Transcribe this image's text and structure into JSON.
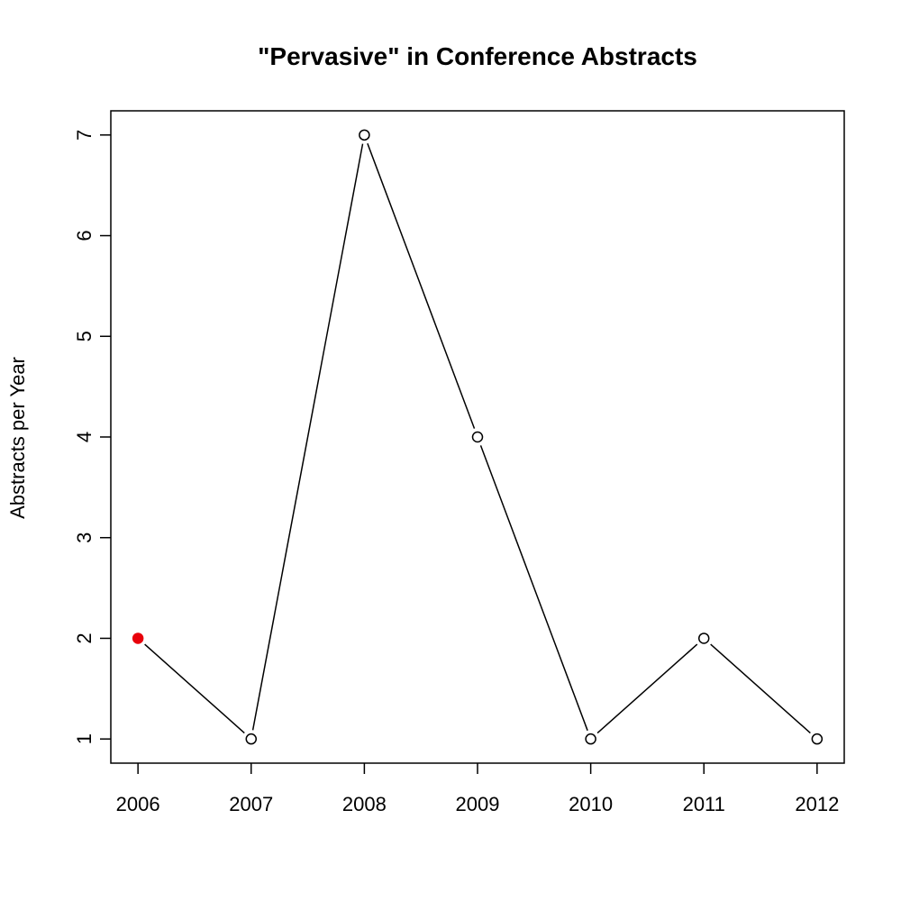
{
  "chart_data": {
    "type": "line",
    "title": "\"Pervasive\" in Conference Abstracts",
    "xlabel": "",
    "ylabel": "Abstracts per Year",
    "x": [
      2006,
      2007,
      2008,
      2009,
      2010,
      2011,
      2012
    ],
    "x_tick_labels": [
      "2006",
      "2007",
      "2008",
      "2009",
      "2010",
      "2011",
      "2012"
    ],
    "y_ticks": [
      1,
      2,
      3,
      4,
      5,
      6,
      7
    ],
    "y_tick_labels": [
      "1",
      "2",
      "3",
      "4",
      "5",
      "6",
      "7"
    ],
    "xlim": [
      2005.76,
      2012.24
    ],
    "ylim": [
      0.76,
      7.24
    ],
    "series": [
      {
        "values": [
          2,
          1,
          7,
          4,
          1,
          2,
          1
        ],
        "line_color": "#000000",
        "marker": "open-circle",
        "highlight_point_index": 0,
        "highlight_color": "#e8000b"
      }
    ],
    "grid": false,
    "legend": "none"
  }
}
